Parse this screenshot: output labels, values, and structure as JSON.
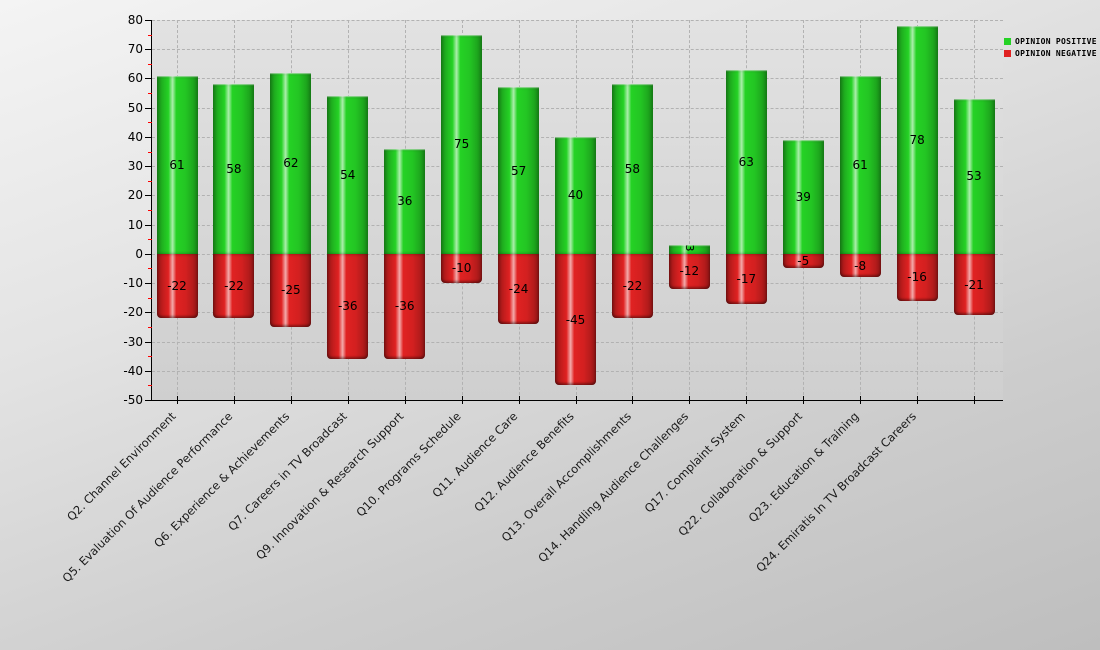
{
  "chart_data": {
    "type": "bar",
    "subtype": "diverging-stacked-cylinder",
    "categories": [
      "Q2. Channel Environment",
      "Q5. Evaluation Of Audience Performance",
      "Q6. Experience & Achievements",
      "Q7. Careers in TV Broadcast",
      "Q9. Innovation & Research Support",
      "Q10. Programs Schedule",
      "Q11. Audience Care",
      "Q12. Audience Benefits",
      "Q13. Overall Accomplishments",
      "Q14. Handling Audience Challenges",
      "Q17. Complaint System",
      "Q22. Collaboration & Support",
      "Q23. Education & Training",
      "Q24. Emiratis In TV Broadcast Careers",
      ""
    ],
    "series": [
      {
        "name": "OPINION POSITIVE",
        "color": "#25d225",
        "values": [
          61,
          58,
          62,
          54,
          36,
          75,
          57,
          40,
          58,
          3,
          63,
          39,
          61,
          78,
          53
        ]
      },
      {
        "name": "OPINION NEGATIVE",
        "color": "#e02222",
        "values": [
          -22,
          -22,
          -25,
          -36,
          -36,
          -10,
          -24,
          -45,
          -22,
          -12,
          -17,
          -5,
          -8,
          -16,
          -21
        ]
      }
    ],
    "ylim": [
      -50,
      80
    ],
    "yticks": [
      80,
      70,
      60,
      50,
      40,
      30,
      20,
      10,
      0,
      -10,
      -20,
      -30,
      -40,
      -50
    ],
    "ytick_minor_step": 5,
    "grid": true,
    "legend_position": "top-right",
    "value_labels": true,
    "x_label_rotation_deg": 45
  },
  "colors": {
    "minor_tick": "#ff0000",
    "axis": "#000000",
    "grid": "#b2b2b2",
    "value_label": "#000000"
  }
}
